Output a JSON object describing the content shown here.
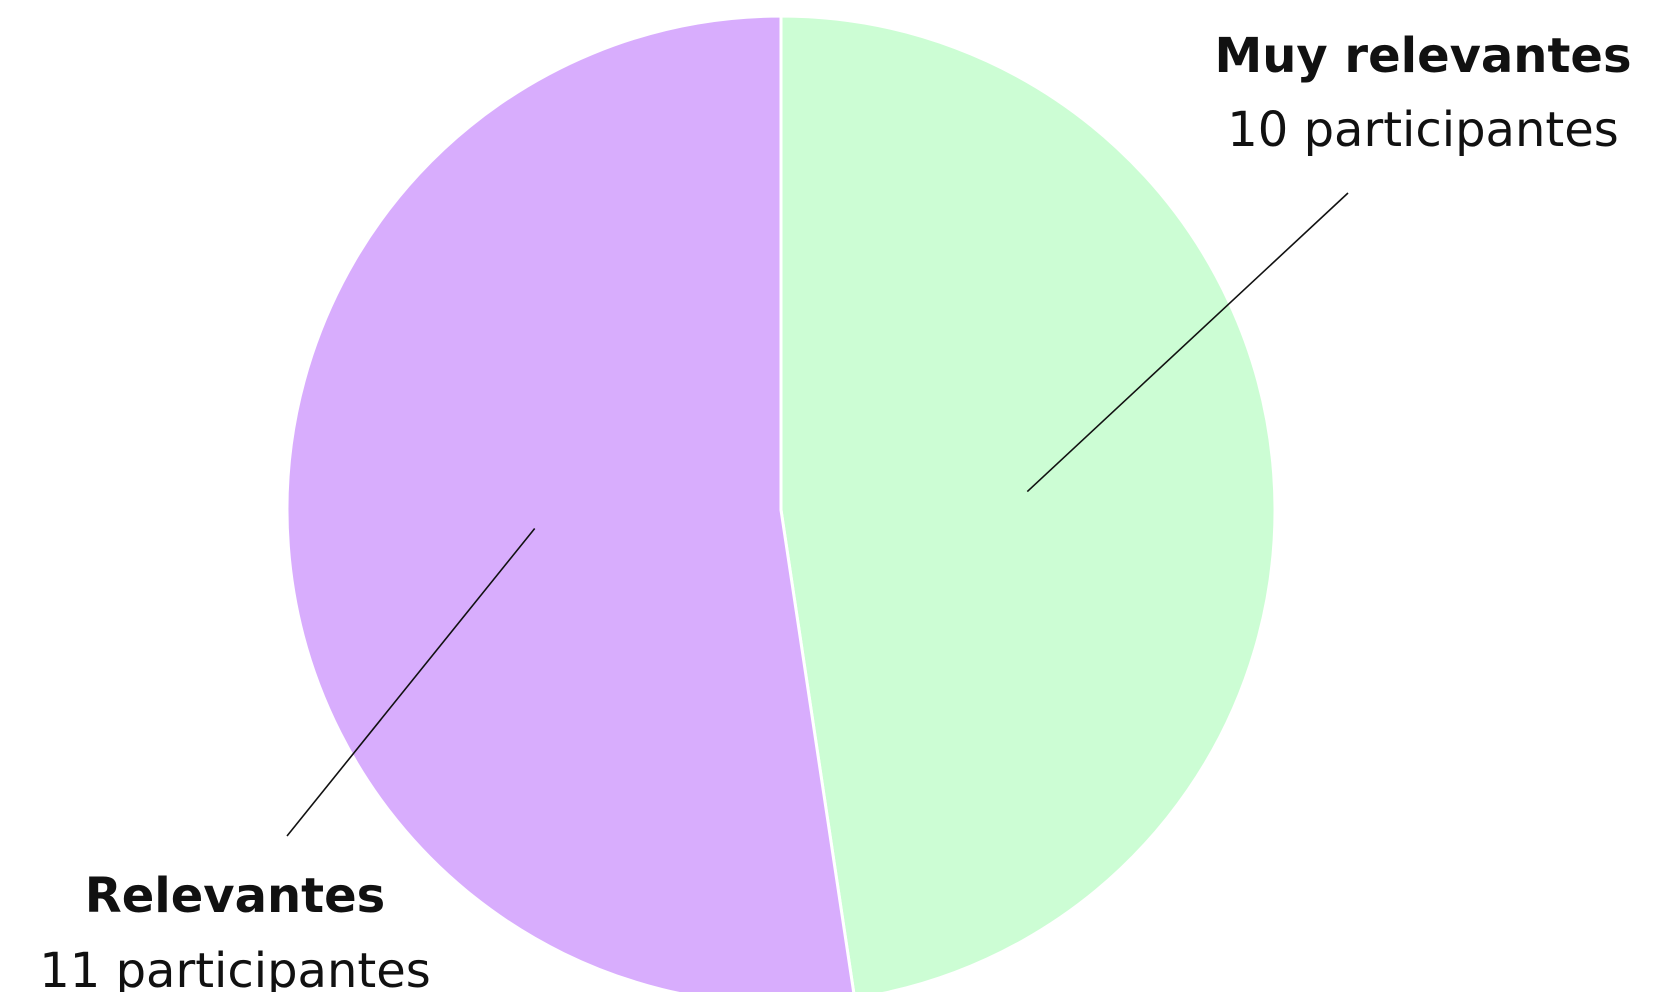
{
  "chart_data": {
    "type": "pie",
    "categories": [
      "Muy relevantes",
      "Relevantes"
    ],
    "values": [
      10,
      11
    ],
    "value_labels": [
      "10 participantes",
      "11 participantes"
    ],
    "colors": [
      "#ccfdd4",
      "#d8adfd"
    ]
  }
}
